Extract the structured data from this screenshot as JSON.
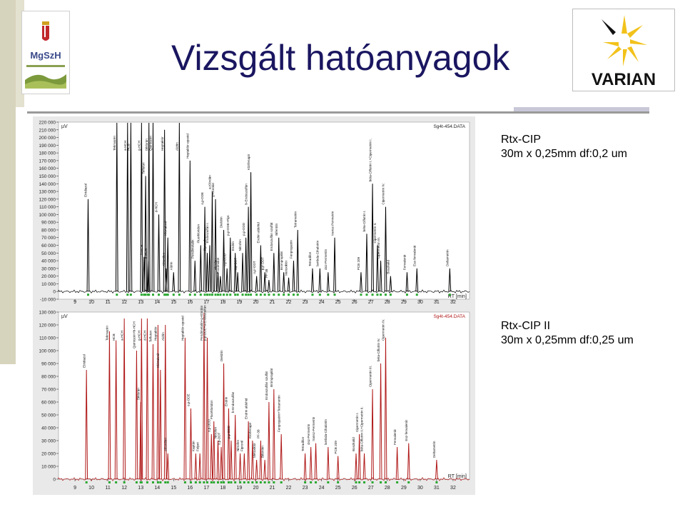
{
  "page": {
    "title": "Vizsgált hatóanyagok",
    "logo_left_text": "MgSzH",
    "logo_right_text": "VARIAN"
  },
  "captions": [
    {
      "line1": "Rtx-CIP",
      "line2": "30m x 0,25mm df:0,2 um"
    },
    {
      "line1": "Rtx-CIP II",
      "line2": "30m x 0,25mm df:0,25 um"
    }
  ],
  "colors": {
    "title": "#1a1660",
    "trace_top": "#000000",
    "trace_bottom": "#b01818",
    "marker": "#2aa830",
    "plot_bg": "#ffffff",
    "frame_bg": "#e9e9e9",
    "varian_yellow": "#f2c21b"
  },
  "chart_data": [
    {
      "type": "line",
      "data_file": "Sg4t-454.DATA",
      "ylabel": "µV",
      "xlabel": "RT [min]",
      "xlim": [
        8,
        33
      ],
      "ylim": [
        -10000,
        220000
      ],
      "x_ticks": [
        9,
        10,
        11,
        12,
        13,
        14,
        15,
        16,
        17,
        18,
        19,
        20,
        21,
        22,
        23,
        24,
        25,
        26,
        27,
        28,
        29,
        30,
        31,
        32
      ],
      "y_ticks": [
        -10000,
        0,
        10000,
        20000,
        30000,
        40000,
        50000,
        60000,
        70000,
        80000,
        90000,
        100000,
        110000,
        120000,
        130000,
        140000,
        150000,
        160000,
        170000,
        180000,
        190000,
        200000,
        210000,
        220000
      ],
      "y_tick_labels": [
        "-10 000",
        "0",
        "10 000",
        "20 000",
        "30 000",
        "40 000",
        "50 000",
        "60 000",
        "70 000",
        "80 000",
        "90 000",
        "100 000",
        "110 000",
        "120 000",
        "130 000",
        "140 000",
        "150 000",
        "160 000",
        "170 000",
        "180 000",
        "190 000",
        "200 000",
        "210 000",
        "220 000"
      ],
      "peaks": [
        {
          "rt": 9.8,
          "height": 120000,
          "label": "Etridiazol"
        },
        {
          "rt": 11.55,
          "height": 220000,
          "label": "Tekmazén"
        },
        {
          "rt": 12.2,
          "height": 220000,
          "label": "a-HCH"
        },
        {
          "rt": 12.4,
          "height": 220000,
          "label": "HCB"
        },
        {
          "rt": 13.05,
          "height": 220000,
          "label": "g-HCH"
        },
        {
          "rt": 13.3,
          "height": 150000,
          "label": "Tefluton"
        },
        {
          "rt": 13.5,
          "height": 220000,
          "label": "Diklorán"
        },
        {
          "rt": 13.75,
          "height": 220000,
          "label": "Quintozén"
        },
        {
          "rt": 13.2,
          "height": 45000,
          "label": "b-HCH"
        },
        {
          "rt": 13.45,
          "height": 40000,
          "label": "b-HCH"
        },
        {
          "rt": 14.1,
          "height": 100000,
          "label": "d-HCH"
        },
        {
          "rt": 14.45,
          "height": 210000,
          "label": "Heptaklór"
        },
        {
          "rt": 14.65,
          "height": 70000,
          "label": "Klórtalonil"
        },
        {
          "rt": 14.55,
          "height": 30000,
          "label": "Aklonifen"
        },
        {
          "rt": 15.0,
          "height": 25000,
          "label": "Aldrin"
        },
        {
          "rt": 15.35,
          "height": 220000,
          "label": "Aldrin"
        },
        {
          "rt": 16.0,
          "height": 170000,
          "label": "Heptaklór-epoxid"
        },
        {
          "rt": 16.3,
          "height": 40000,
          "label": "Pendimetalin"
        },
        {
          "rt": 16.65,
          "height": 60000,
          "label": "Fluorkloridon"
        },
        {
          "rt": 16.9,
          "height": 110000,
          "label": "o,p-DDE"
        },
        {
          "rt": 17.05,
          "height": 50000,
          "label": "Fipronil"
        },
        {
          "rt": 17.2,
          "height": 60000,
          "label": "Endoszulfán I."
        },
        {
          "rt": 17.35,
          "height": 130000,
          "label": "a-Klórdán"
        },
        {
          "rt": 17.55,
          "height": 120000,
          "label": "g-Klórdán"
        },
        {
          "rt": 17.7,
          "height": 25000,
          "label": "Nitrofen"
        },
        {
          "rt": 17.85,
          "height": 20000,
          "label": "Procimidon"
        },
        {
          "rt": 18.05,
          "height": 80000,
          "label": "Dieldrin"
        },
        {
          "rt": 18.25,
          "height": 30000,
          "label": "o,p-DDD"
        },
        {
          "rt": 18.45,
          "height": 70000,
          "label": "p,p-DDE+Fipr."
        },
        {
          "rt": 18.75,
          "height": 50000,
          "label": "Endrin"
        },
        {
          "rt": 18.9,
          "height": 25000,
          "label": "o,p-DDT"
        },
        {
          "rt": 19.2,
          "height": 50000,
          "label": "Nitrofen"
        },
        {
          "rt": 19.4,
          "height": 70000,
          "label": "p,p-DDD"
        },
        {
          "rt": 19.55,
          "height": 110000,
          "label": "b-Endoszulfán"
        },
        {
          "rt": 19.7,
          "height": 155000,
          "label": "Klórfenapir"
        },
        {
          "rt": 20.05,
          "height": 20000,
          "label": "o,p'-DDT"
        },
        {
          "rt": 20.3,
          "height": 60000,
          "label": "Endrin aldehid"
        },
        {
          "rt": 20.55,
          "height": 25000,
          "label": "p,p'-DDT"
        },
        {
          "rt": 20.8,
          "height": 15000,
          "label": "PF-38"
        },
        {
          "rt": 21.1,
          "height": 50000,
          "label": "Endoszulfán szulfát"
        },
        {
          "rt": 21.4,
          "height": 70000,
          "label": "Bifentrin"
        },
        {
          "rt": 21.7,
          "height": 25000,
          "label": "Brómpropilát"
        },
        {
          "rt": 22.0,
          "height": 18000,
          "label": "Metoxiklór"
        },
        {
          "rt": 22.3,
          "height": 40000,
          "label": "Fenpropatrin"
        },
        {
          "rt": 22.55,
          "height": 80000,
          "label": "Tetrametrin"
        },
        {
          "rt": 23.45,
          "height": 30000,
          "label": "Tetradifon"
        },
        {
          "rt": 23.9,
          "height": 30000,
          "label": "lambda-Cihalotrin"
        },
        {
          "rt": 24.4,
          "height": 25000,
          "label": "cisz-Permetrin"
        },
        {
          "rt": 24.8,
          "height": 70000,
          "label": "transz-Permetrin"
        },
        {
          "rt": 26.4,
          "height": 25000,
          "label": "PCB 209"
        },
        {
          "rt": 26.75,
          "height": 75000,
          "label": "béta-Ciflutrin I."
        },
        {
          "rt": 27.1,
          "height": 140000,
          "label": "béta-Ciflutrin I.+Cipermetrin I."
        },
        {
          "rt": 27.4,
          "height": 60000,
          "label": "Cipermetrin II."
        },
        {
          "rt": 27.6,
          "height": 40000,
          "label": "Cipermetrin III."
        },
        {
          "rt": 27.9,
          "height": 110000,
          "label": "Cipermetrin IV."
        },
        {
          "rt": 28.2,
          "height": 20000,
          "label": "Boszkalid"
        },
        {
          "rt": 29.2,
          "height": 25000,
          "label": "Fenvalerát"
        },
        {
          "rt": 29.8,
          "height": 30000,
          "label": "Esz-fenvalerát"
        },
        {
          "rt": 31.8,
          "height": 30000,
          "label": "Deltametrin"
        }
      ]
    },
    {
      "type": "line",
      "data_file": "Sg4t-454.DATA",
      "ylabel": "µV",
      "xlabel": "RT [min]",
      "xlim": [
        8,
        33
      ],
      "ylim": [
        0,
        130000
      ],
      "x_ticks": [
        9,
        10,
        11,
        12,
        13,
        14,
        15,
        16,
        17,
        18,
        19,
        20,
        21,
        22,
        23,
        24,
        25,
        26,
        27,
        28,
        29,
        30,
        31,
        32
      ],
      "y_ticks": [
        0,
        10000,
        20000,
        30000,
        40000,
        50000,
        60000,
        70000,
        80000,
        90000,
        100000,
        110000,
        120000,
        130000
      ],
      "y_tick_labels": [
        "0",
        "10 000",
        "20 000",
        "30 000",
        "40 000",
        "50 000",
        "60 000",
        "70 000",
        "80 000",
        "90 000",
        "100 000",
        "110 000",
        "120 000",
        "130 000"
      ],
      "peaks": [
        {
          "rt": 9.7,
          "height": 85000,
          "label": "Etridiazol"
        },
        {
          "rt": 11.1,
          "height": 115000,
          "label": "Tekmazén"
        },
        {
          "rt": 11.5,
          "height": 108000,
          "label": "HCB"
        },
        {
          "rt": 12.0,
          "height": 125000,
          "label": "a-HCH"
        },
        {
          "rt": 12.75,
          "height": 100000,
          "label": "Quintozén+b-HCH"
        },
        {
          "rt": 13.05,
          "height": 125000,
          "label": "g-HCH"
        },
        {
          "rt": 13.4,
          "height": 125000,
          "label": "d-HCH"
        },
        {
          "rt": 13.0,
          "height": 60000,
          "label": "Diklorán"
        },
        {
          "rt": 13.75,
          "height": 105000,
          "label": "Tefluton"
        },
        {
          "rt": 14.05,
          "height": 120000,
          "label": "Heptaklór"
        },
        {
          "rt": 14.2,
          "height": 85000,
          "label": "Klórtalonil"
        },
        {
          "rt": 14.5,
          "height": 120000,
          "label": "Aldrin"
        },
        {
          "rt": 14.65,
          "height": 20000,
          "label": "Aklonifen"
        },
        {
          "rt": 15.7,
          "height": 110000,
          "label": "Heptaklór-epoxid"
        },
        {
          "rt": 16.05,
          "height": 55000,
          "label": "o,p-DDE"
        },
        {
          "rt": 16.35,
          "height": 20000,
          "label": "Kaptán"
        },
        {
          "rt": 16.6,
          "height": 20000,
          "label": "Folpet"
        },
        {
          "rt": 16.85,
          "height": 130000,
          "label": "Pendimetalin+g-Klórdán"
        },
        {
          "rt": 17.05,
          "height": 110000,
          "label": "p,p-DDE+a-Endoszulfán"
        },
        {
          "rt": 17.3,
          "height": 35000,
          "label": "o,p-DDD"
        },
        {
          "rt": 17.45,
          "height": 45000,
          "label": "Fluorkloridon"
        },
        {
          "rt": 17.7,
          "height": 30000,
          "label": "Nitrofen"
        },
        {
          "rt": 17.9,
          "height": 25000,
          "label": "o,p-DDT"
        },
        {
          "rt": 18.05,
          "height": 90000,
          "label": "Dieldrin"
        },
        {
          "rt": 18.35,
          "height": 55000,
          "label": "Endrin"
        },
        {
          "rt": 18.5,
          "height": 30000,
          "label": "p,p-DDD"
        },
        {
          "rt": 18.75,
          "height": 50000,
          "label": "b-Endoszulfán"
        },
        {
          "rt": 19.05,
          "height": 20000,
          "label": "Nitrofen"
        },
        {
          "rt": 19.3,
          "height": 20000,
          "label": "Fipronil"
        },
        {
          "rt": 19.55,
          "height": 45000,
          "label": "Endrin aldehid"
        },
        {
          "rt": 19.8,
          "height": 30000,
          "label": "Klórfenapir"
        },
        {
          "rt": 20.05,
          "height": 15000,
          "label": "Metoxiklór"
        },
        {
          "rt": 20.3,
          "height": 30000,
          "label": "PF-38"
        },
        {
          "rt": 20.55,
          "height": 15000,
          "label": "Bifentrin"
        },
        {
          "rt": 20.8,
          "height": 60000,
          "label": "Endoszulfán szulfát"
        },
        {
          "rt": 21.1,
          "height": 70000,
          "label": "Brómpropilát"
        },
        {
          "rt": 21.55,
          "height": 35000,
          "label": "Fenpropatrin+Tetrametrin"
        },
        {
          "rt": 23.0,
          "height": 20000,
          "label": "Tetradifon"
        },
        {
          "rt": 23.35,
          "height": 25000,
          "label": "cisz-Permetrin"
        },
        {
          "rt": 23.65,
          "height": 28000,
          "label": "transz-Permetrin"
        },
        {
          "rt": 24.4,
          "height": 25000,
          "label": "lambda-Cihalotrin"
        },
        {
          "rt": 25.0,
          "height": 18000,
          "label": "PCB 209"
        },
        {
          "rt": 26.3,
          "height": 35000,
          "label": "Cipermetrin I."
        },
        {
          "rt": 26.1,
          "height": 20000,
          "label": "Boszkalid"
        },
        {
          "rt": 26.6,
          "height": 20000,
          "label": "béta-Ciflutrin II.+Cipermetrin II."
        },
        {
          "rt": 27.1,
          "height": 70000,
          "label": "Cipermetrin III."
        },
        {
          "rt": 27.6,
          "height": 90000,
          "label": "béta-Ciflutrin IV."
        },
        {
          "rt": 27.9,
          "height": 110000,
          "label": "Cipermetrin IV."
        },
        {
          "rt": 28.6,
          "height": 25000,
          "label": "Fenvalerát"
        },
        {
          "rt": 29.3,
          "height": 28000,
          "label": "Esz-fenvalerát"
        },
        {
          "rt": 31.0,
          "height": 15000,
          "label": "Deltametrin"
        }
      ]
    }
  ]
}
